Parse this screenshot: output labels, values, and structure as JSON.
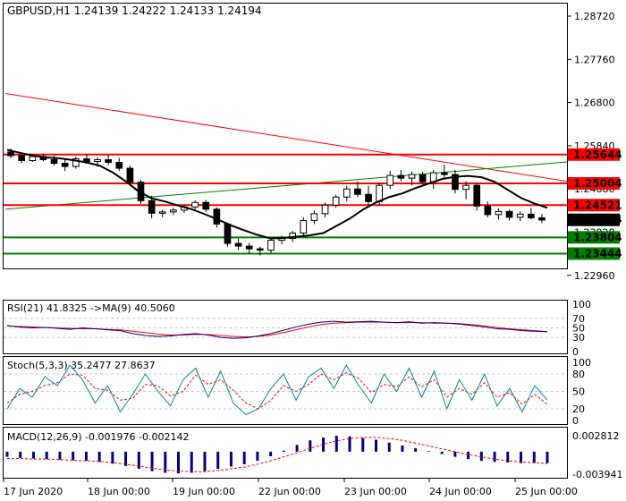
{
  "header": {
    "title": "GBPUSD,H1  1.24139  1.24222  1.24133  1.24194"
  },
  "colors": {
    "background": "#ffffff",
    "frame": "#000000",
    "resistance": "#ff0000",
    "support": "#008000",
    "trend_down": "#ff0000",
    "trend_up": "#008000",
    "ma_line": "#000000",
    "indicator_main": "#000080",
    "indicator_signal": "#ff0000",
    "histogram": "#000080",
    "grid": "#c8c8c8",
    "price_tag_bg": "#000000",
    "price_tag_fg": "#ffffff"
  },
  "panels": {
    "rsi": {
      "label": "RSI(21) 41.8325  ->MA(9) 40.5060",
      "levels": [
        "100",
        "70",
        "50",
        "30",
        "0"
      ]
    },
    "stoch": {
      "label": "Stoch(5,3,3) 35.2477 27.8637",
      "levels": [
        "100",
        "80",
        "50",
        "20",
        "0"
      ]
    },
    "macd": {
      "label": "MACD(12,26,9) -0.001976 -0.002142",
      "levels": [
        "0.002812",
        "-0.003941"
      ]
    }
  },
  "chart_data": {
    "type": "candlestick",
    "symbol": "GBPUSD",
    "timeframe": "H1",
    "ohlc_current": {
      "open": 1.24139,
      "high": 1.24222,
      "low": 1.24133,
      "close": 1.24194
    },
    "y_ticks": [
      "1.28720",
      "1.27760",
      "1.26800",
      "1.25840",
      "1.24880",
      "1.23920",
      "1.22960"
    ],
    "ylim": [
      1.2246,
      1.2915
    ],
    "x_ticks": [
      "17 Jun 2020",
      "18 Jun 00:00",
      "19 Jun 00:00",
      "22 Jun 00:00",
      "23 Jun 00:00",
      "24 Jun 00:00",
      "25 Jun 00:00"
    ],
    "levels": [
      {
        "label": "1.25644",
        "value": 1.25644,
        "role": "resistance"
      },
      {
        "label": "1.25004",
        "value": 1.25004,
        "role": "resistance"
      },
      {
        "label": "1.24521",
        "value": 1.24521,
        "role": "resistance"
      },
      {
        "label": "1.23804",
        "value": 1.23804,
        "role": "support"
      },
      {
        "label": "1.23444",
        "value": 1.23444,
        "role": "support"
      }
    ],
    "current_price": "1.24194",
    "trendlines": [
      {
        "role": "down",
        "from": [
          0,
          1.27
        ],
        "to": [
          61,
          1.2505
        ]
      },
      {
        "role": "up",
        "from": [
          0,
          1.2443
        ],
        "to": [
          61,
          1.2548
        ]
      }
    ],
    "ma_line": [
      1.2575,
      1.2568,
      1.2562,
      1.2558,
      1.2556,
      1.2552,
      1.2547,
      1.254,
      1.2525,
      1.2505,
      1.2482,
      1.2467,
      1.246,
      1.2451,
      1.2443,
      1.2432,
      1.242,
      1.2407,
      1.2396,
      1.2386,
      1.2378,
      1.2379,
      1.2382,
      1.2385,
      1.239,
      1.2406,
      1.2422,
      1.2442,
      1.2458,
      1.247,
      1.2478,
      1.249,
      1.25,
      1.251,
      1.2515,
      1.2517,
      1.2514,
      1.2504,
      1.2486,
      1.2468,
      1.2456,
      1.2446
    ],
    "candles": [
      [
        1.257,
        1.2578,
        1.2556,
        1.2562
      ],
      [
        1.2562,
        1.257,
        1.2545,
        1.2551
      ],
      [
        1.2551,
        1.2566,
        1.2548,
        1.256
      ],
      [
        1.256,
        1.2567,
        1.2549,
        1.2553
      ],
      [
        1.2553,
        1.2562,
        1.254,
        1.2545
      ],
      [
        1.2545,
        1.2555,
        1.2528,
        1.2538
      ],
      [
        1.2538,
        1.256,
        1.2533,
        1.2555
      ],
      [
        1.2555,
        1.2566,
        1.2544,
        1.2549
      ],
      [
        1.2549,
        1.2558,
        1.2537,
        1.2553
      ],
      [
        1.2553,
        1.2563,
        1.2541,
        1.2547
      ],
      [
        1.2547,
        1.2557,
        1.2528,
        1.2534
      ],
      [
        1.2534,
        1.254,
        1.2495,
        1.2503
      ],
      [
        1.2503,
        1.2508,
        1.2455,
        1.2462
      ],
      [
        1.2462,
        1.2473,
        1.2423,
        1.2434
      ],
      [
        1.2434,
        1.2442,
        1.2425,
        1.2437
      ],
      [
        1.2437,
        1.2446,
        1.243,
        1.2441
      ],
      [
        1.2441,
        1.2452,
        1.2435,
        1.2448
      ],
      [
        1.2448,
        1.2463,
        1.2442,
        1.2458
      ],
      [
        1.2458,
        1.2464,
        1.2437,
        1.2443
      ],
      [
        1.2443,
        1.2447,
        1.2402,
        1.241
      ],
      [
        1.241,
        1.2413,
        1.236,
        1.2367
      ],
      [
        1.2367,
        1.2378,
        1.2352,
        1.2361
      ],
      [
        1.2361,
        1.2368,
        1.2344,
        1.2355
      ],
      [
        1.2355,
        1.236,
        1.234,
        1.2352
      ],
      [
        1.2352,
        1.238,
        1.2346,
        1.2374
      ],
      [
        1.2374,
        1.2384,
        1.2365,
        1.2378
      ],
      [
        1.2378,
        1.2395,
        1.237,
        1.239
      ],
      [
        1.239,
        1.2425,
        1.2382,
        1.2418
      ],
      [
        1.2418,
        1.244,
        1.241,
        1.2433
      ],
      [
        1.2433,
        1.2458,
        1.2425,
        1.2452
      ],
      [
        1.2452,
        1.2475,
        1.2446,
        1.247
      ],
      [
        1.247,
        1.2495,
        1.246,
        1.2488
      ],
      [
        1.2488,
        1.2505,
        1.247,
        1.2476
      ],
      [
        1.2476,
        1.2495,
        1.2452,
        1.246
      ],
      [
        1.246,
        1.2502,
        1.2452,
        1.2496
      ],
      [
        1.2496,
        1.2528,
        1.2488,
        1.2518
      ],
      [
        1.2518,
        1.253,
        1.2505,
        1.2512
      ],
      [
        1.2512,
        1.2527,
        1.2496,
        1.252
      ],
      [
        1.252,
        1.2526,
        1.2498,
        1.2504
      ],
      [
        1.2504,
        1.253,
        1.2488,
        1.2524
      ],
      [
        1.2524,
        1.2542,
        1.2512,
        1.252
      ],
      [
        1.252,
        1.253,
        1.2478,
        1.2487
      ],
      [
        1.2487,
        1.2505,
        1.2465,
        1.2496
      ],
      [
        1.2496,
        1.25,
        1.244,
        1.245
      ],
      [
        1.245,
        1.246,
        1.2425,
        1.2431
      ],
      [
        1.2431,
        1.2445,
        1.242,
        1.2438
      ],
      [
        1.2438,
        1.2442,
        1.2418,
        1.2425
      ],
      [
        1.2425,
        1.2438,
        1.2417,
        1.2432
      ],
      [
        1.2432,
        1.2446,
        1.242,
        1.2424
      ],
      [
        1.2424,
        1.2432,
        1.2412,
        1.2419
      ]
    ],
    "rsi_main": [
      55,
      52,
      50,
      51,
      49,
      47,
      50,
      48,
      46,
      44,
      38,
      34,
      32,
      33,
      36,
      38,
      35,
      30,
      28,
      29,
      33,
      38,
      45,
      52,
      58,
      62,
      64,
      62,
      63,
      64,
      62,
      61,
      63,
      60,
      61,
      60,
      58,
      55,
      52,
      48,
      47,
      44,
      43,
      42
    ],
    "rsi_signal": [
      54,
      53,
      52,
      51,
      50,
      49,
      48,
      48,
      47,
      46,
      43,
      40,
      37,
      35,
      35,
      36,
      36,
      34,
      32,
      31,
      32,
      35,
      40,
      46,
      52,
      57,
      60,
      61,
      62,
      62,
      62,
      61,
      61,
      61,
      60,
      60,
      59,
      57,
      54,
      51,
      48,
      46,
      44,
      42
    ],
    "stoch_main": [
      20,
      55,
      40,
      75,
      60,
      95,
      70,
      30,
      60,
      15,
      45,
      80,
      50,
      25,
      70,
      90,
      40,
      85,
      30,
      10,
      20,
      55,
      80,
      35,
      75,
      90,
      55,
      95,
      60,
      30,
      80,
      50,
      90,
      40,
      85,
      20,
      70,
      35,
      80,
      25,
      55,
      15,
      60,
      35
    ],
    "stoch_signal": [
      30,
      45,
      50,
      60,
      65,
      80,
      78,
      55,
      52,
      35,
      38,
      62,
      60,
      42,
      50,
      78,
      62,
      70,
      52,
      30,
      20,
      35,
      60,
      50,
      62,
      80,
      70,
      82,
      72,
      48,
      62,
      58,
      75,
      58,
      70,
      40,
      55,
      45,
      65,
      40,
      48,
      28,
      45,
      28
    ],
    "macd_hist": [
      -0.0009,
      -0.0011,
      -0.0012,
      -0.0013,
      -0.0014,
      -0.0015,
      -0.0016,
      -0.0018,
      -0.0021,
      -0.0025,
      -0.003,
      -0.0034,
      -0.0037,
      -0.0038,
      -0.0037,
      -0.0034,
      -0.003,
      -0.0026,
      -0.0022,
      -0.0016,
      -0.0008,
      0.0002,
      0.0012,
      0.002,
      0.0025,
      0.0028,
      0.0027,
      0.0024,
      0.0021,
      0.0016,
      0.0011,
      0.0006,
      0.0001,
      -0.0004,
      -0.0009,
      -0.0013,
      -0.0016,
      -0.0018,
      -0.0019,
      -0.002,
      -0.002,
      -0.002
    ],
    "macd_signal": [
      -0.0012,
      -0.0012,
      -0.0013,
      -0.0013,
      -0.0014,
      -0.0015,
      -0.0016,
      -0.0017,
      -0.0019,
      -0.0022,
      -0.0025,
      -0.0029,
      -0.0032,
      -0.0034,
      -0.0035,
      -0.0035,
      -0.0033,
      -0.003,
      -0.0027,
      -0.0022,
      -0.0016,
      -0.0009,
      -0.0002,
      0.0006,
      0.0013,
      0.0019,
      0.0023,
      0.0025,
      0.0025,
      0.0023,
      0.002,
      0.0015,
      0.001,
      0.0005,
      0.0,
      -0.0005,
      -0.0009,
      -0.0013,
      -0.0016,
      -0.0018,
      -0.0019,
      -0.0021
    ]
  }
}
